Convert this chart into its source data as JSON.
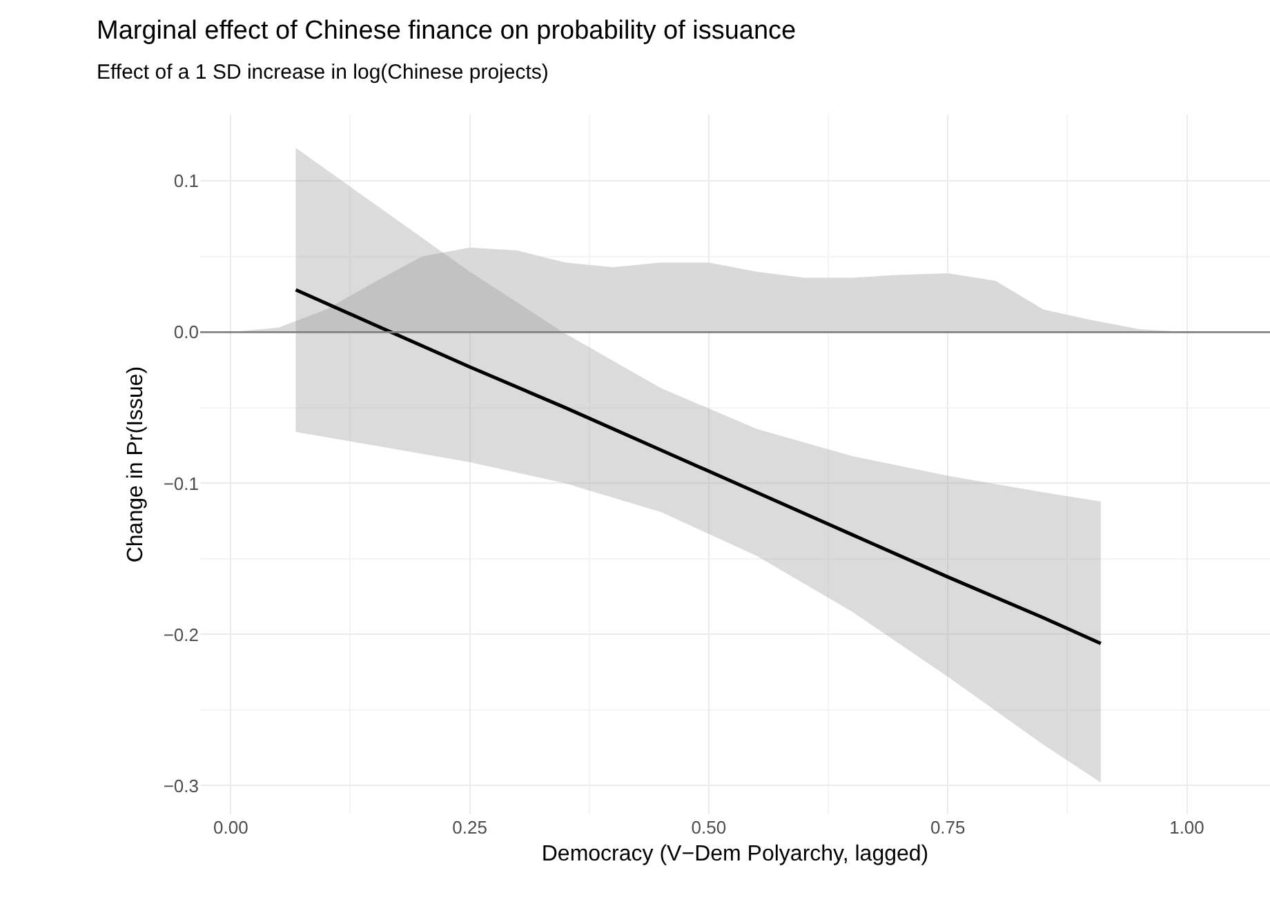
{
  "chart_data": {
    "type": "line",
    "title": "Marginal effect of Chinese finance on probability of issuance",
    "subtitle": "Effect of a 1 SD increase in log(Chinese projects)",
    "xlabel": "Democracy (V−Dem Polyarchy, lagged)",
    "ylabel": "Change in Pr(Issue)",
    "series": [
      {
        "type": "area",
        "color": "#d9d9d9",
        "x": [
          0,
          0.05,
          0.1,
          0.15,
          0.2,
          0.25,
          0.3,
          0.35,
          0.4,
          0.45,
          0.5,
          0.55,
          0.6,
          0.65,
          0.7,
          0.75,
          0.8,
          0.85,
          0.9,
          0.95,
          1.0
        ],
        "values": [
          0,
          0.003,
          0.015,
          0.033,
          0.05,
          0.056,
          0.054,
          0.046,
          0.043,
          0.046,
          0.046,
          0.04,
          0.036,
          0.036,
          0.038,
          0.039,
          0.034,
          0.015,
          0.008,
          0.002,
          0
        ]
      },
      {
        "color": "#000000",
        "x": [
          0.068,
          0.15,
          0.25,
          0.35,
          0.45,
          0.55,
          0.65,
          0.75,
          0.85,
          0.91
        ],
        "values": [
          0.028,
          0.005,
          -0.023,
          -0.05,
          -0.078,
          -0.106,
          -0.134,
          -0.162,
          -0.189,
          -0.206
        ],
        "lower": [
          -0.066,
          -0.075,
          -0.086,
          -0.1,
          -0.119,
          -0.148,
          -0.185,
          -0.228,
          -0.273,
          -0.298
        ],
        "upper": [
          0.122,
          0.085,
          0.04,
          -0.001,
          -0.037,
          -0.064,
          -0.082,
          -0.095,
          -0.106,
          -0.112
        ]
      }
    ],
    "xlim": [
      -0.032,
      1.087
    ],
    "ylim": [
      -0.319,
      0.144
    ],
    "xticks": [
      {
        "value": 0,
        "label": "0.00"
      },
      {
        "value": 0.25,
        "label": "0.25"
      },
      {
        "value": 0.5,
        "label": "0.50"
      },
      {
        "value": 0.75,
        "label": "0.75"
      },
      {
        "value": 1,
        "label": "1.00"
      }
    ],
    "yticks": [
      {
        "value": -0.3,
        "label": "−0.3"
      },
      {
        "value": -0.2,
        "label": "−0.2"
      },
      {
        "value": -0.1,
        "label": "−0.1"
      },
      {
        "value": 0,
        "label": "0.0"
      },
      {
        "value": 0.1,
        "label": "0.1"
      }
    ],
    "ref_lines": [
      {
        "axis": "y",
        "value": 0,
        "color": "#808080"
      }
    ],
    "grid": true
  }
}
